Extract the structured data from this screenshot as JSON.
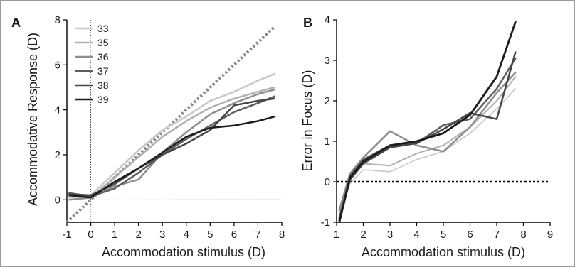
{
  "chart_data": [
    {
      "panel": "A",
      "type": "line",
      "xlabel": "Accommodation stimulus (D)",
      "ylabel": "Accommodative Response (D)",
      "xlim": [
        -1,
        8
      ],
      "ylim": [
        -1,
        8
      ],
      "xticks": [
        -1,
        0,
        1,
        2,
        3,
        4,
        5,
        6,
        7,
        8
      ],
      "yticks": [
        0,
        2,
        4,
        6,
        8
      ],
      "legend_position": "top-left",
      "reference_lines": [
        {
          "kind": "unity",
          "style": "dotted",
          "color": "#8a8a8a",
          "from": [
            -1,
            -1
          ],
          "to": [
            7.7,
            7.7
          ]
        },
        {
          "kind": "horizontal",
          "value": 0,
          "style": "dotted",
          "color": "#333333"
        },
        {
          "kind": "vertical",
          "value": 0,
          "style": "dotted",
          "color": "#333333"
        }
      ],
      "series": [
        {
          "name": "33",
          "color": "#c8c8c8",
          "width": 2.5,
          "x": [
            -0.9,
            0,
            1,
            2,
            3,
            4,
            5,
            6,
            7,
            7.7
          ],
          "y": [
            0.1,
            0.2,
            1.2,
            2.2,
            3.1,
            3.7,
            4.4,
            4.8,
            5.3,
            5.6
          ]
        },
        {
          "name": "35",
          "color": "#b0b0b0",
          "width": 2.5,
          "x": [
            -0.9,
            0,
            1,
            2,
            3,
            4,
            5,
            6,
            7,
            7.7
          ],
          "y": [
            0.15,
            0.1,
            1.0,
            1.9,
            2.8,
            3.5,
            4.1,
            4.5,
            4.8,
            5.0
          ]
        },
        {
          "name": "36",
          "color": "#8e8e8e",
          "width": 2.5,
          "x": [
            -0.9,
            0,
            1,
            2,
            3,
            4,
            5,
            6,
            7,
            7.7
          ],
          "y": [
            0.0,
            0.1,
            0.6,
            0.9,
            2.1,
            3.0,
            3.8,
            4.3,
            4.7,
            4.9
          ]
        },
        {
          "name": "37",
          "color": "#5e5e5e",
          "width": 2.5,
          "x": [
            -0.9,
            0,
            1,
            2,
            3,
            4,
            5,
            6,
            7,
            7.7
          ],
          "y": [
            0.3,
            0.15,
            0.5,
            1.2,
            2.0,
            2.7,
            3.3,
            3.9,
            4.3,
            4.6
          ]
        },
        {
          "name": "38",
          "color": "#464646",
          "width": 2.5,
          "x": [
            -0.9,
            0,
            1,
            2,
            3,
            4,
            5,
            6,
            7,
            7.7
          ],
          "y": [
            0.25,
            0.2,
            0.7,
            1.4,
            2.0,
            2.5,
            3.1,
            4.2,
            4.4,
            4.5
          ]
        },
        {
          "name": "39",
          "color": "#1c1c1c",
          "width": 2.5,
          "x": [
            -0.9,
            0,
            1,
            2,
            3,
            4,
            5,
            6,
            7,
            7.7
          ],
          "y": [
            0.2,
            0.1,
            0.8,
            1.4,
            2.1,
            2.8,
            3.2,
            3.3,
            3.5,
            3.7
          ]
        }
      ]
    },
    {
      "panel": "B",
      "type": "line",
      "xlabel": "Accommodation stimulus (D)",
      "ylabel": "Error in Focus  (D)",
      "xlim": [
        1,
        9
      ],
      "ylim": [
        -1,
        4
      ],
      "xticks": [
        1,
        2,
        3,
        4,
        5,
        6,
        7,
        8,
        9
      ],
      "yticks": [
        -1,
        0,
        1,
        2,
        3,
        4
      ],
      "reference_lines": [
        {
          "kind": "horizontal",
          "value": 0,
          "style": "dotted",
          "color": "#000000"
        }
      ],
      "series": [
        {
          "color": "#c8c8c8",
          "width": 1.6,
          "x": [
            1.1,
            1.5,
            2,
            3,
            4,
            5,
            6,
            7,
            7.7
          ],
          "y": [
            -0.75,
            -0.05,
            0.3,
            0.25,
            0.55,
            0.75,
            1.2,
            1.8,
            2.3
          ]
        },
        {
          "color": "#b0b0b0",
          "width": 2.0,
          "x": [
            1.1,
            1.5,
            2,
            3,
            4,
            5,
            6,
            7,
            7.7
          ],
          "y": [
            -0.8,
            0.1,
            0.45,
            0.4,
            0.7,
            0.9,
            1.35,
            2.0,
            2.6
          ]
        },
        {
          "color": "#8e8e8e",
          "width": 2.5,
          "x": [
            1.1,
            1.5,
            2,
            3,
            4,
            5,
            6,
            7,
            7.7
          ],
          "y": [
            -0.7,
            0.2,
            0.6,
            1.25,
            0.9,
            0.75,
            1.35,
            2.2,
            2.7
          ]
        },
        {
          "color": "#5e5e5e",
          "width": 2.5,
          "x": [
            1.1,
            1.5,
            2,
            3,
            4,
            5,
            6,
            7,
            7.7
          ],
          "y": [
            -0.9,
            0.15,
            0.55,
            0.9,
            0.95,
            1.4,
            1.55,
            2.3,
            3.05
          ]
        },
        {
          "color": "#464646",
          "width": 2.5,
          "x": [
            1.1,
            1.5,
            2,
            3,
            4,
            5,
            6,
            7,
            7.7
          ],
          "y": [
            -0.95,
            0.05,
            0.45,
            0.85,
            0.95,
            1.3,
            1.7,
            1.55,
            3.2
          ]
        },
        {
          "color": "#1c1c1c",
          "width": 2.8,
          "x": [
            1.1,
            1.5,
            2,
            3,
            4,
            5,
            6,
            7,
            7.7
          ],
          "y": [
            -1.0,
            0.1,
            0.5,
            0.9,
            1.0,
            1.2,
            1.65,
            2.6,
            3.95
          ]
        }
      ]
    }
  ]
}
